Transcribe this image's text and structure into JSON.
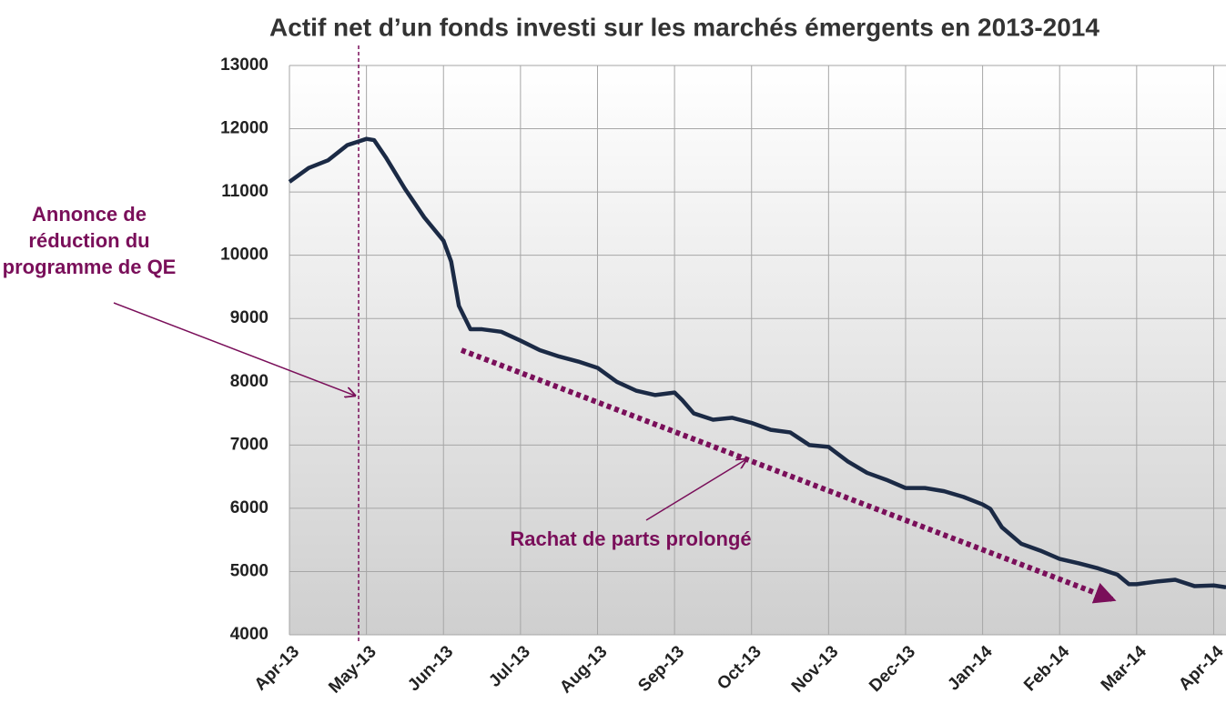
{
  "chart_data": {
    "type": "line",
    "title": "Actif net d’un fonds investi sur les marchés émergents en 2013-2014",
    "annotations": [
      {
        "text": [
          "Annonce de",
          "réduction du",
          "programme de QE"
        ]
      },
      {
        "text": "Rachat de parts prolongé"
      }
    ],
    "x": [
      0,
      0.25,
      0.5,
      0.75,
      0.9,
      1.0,
      1.1,
      1.25,
      1.5,
      1.75,
      2.0,
      2.1,
      2.2,
      2.35,
      2.5,
      2.75,
      3.0,
      3.25,
      3.5,
      3.75,
      4.0,
      4.25,
      4.5,
      4.75,
      5.0,
      5.1,
      5.25,
      5.5,
      5.75,
      6.0,
      6.25,
      6.5,
      6.75,
      7.0,
      7.25,
      7.5,
      7.75,
      8.0,
      8.25,
      8.5,
      8.75,
      9.0,
      9.1,
      9.25,
      9.5,
      9.75,
      10.0,
      10.25,
      10.5,
      10.75,
      10.9,
      11.0,
      11.25,
      11.5,
      11.75,
      12.0,
      12.16
    ],
    "series": [
      {
        "name": "Actif net",
        "color": "#1b2a45",
        "values": [
          11160,
          11380,
          11500,
          11740,
          11800,
          11840,
          11820,
          11550,
          11050,
          10600,
          10230,
          9900,
          9200,
          8830,
          8830,
          8790,
          8650,
          8500,
          8400,
          8320,
          8220,
          8000,
          7860,
          7790,
          7830,
          7710,
          7500,
          7400,
          7430,
          7350,
          7240,
          7200,
          7000,
          6970,
          6740,
          6560,
          6450,
          6320,
          6320,
          6270,
          6180,
          6060,
          5990,
          5700,
          5440,
          5330,
          5200,
          5130,
          5050,
          4950,
          4800,
          4800,
          4840,
          4870,
          4770,
          4780,
          4750
        ]
      }
    ],
    "xlim": [
      0,
      12.16
    ],
    "xticks": [
      {
        "value": 0,
        "label": "Apr-13"
      },
      {
        "value": 1,
        "label": "May-13"
      },
      {
        "value": 2,
        "label": "Jun-13"
      },
      {
        "value": 3,
        "label": "Jul-13"
      },
      {
        "value": 4,
        "label": "Aug-13"
      },
      {
        "value": 5,
        "label": "Sep-13"
      },
      {
        "value": 6,
        "label": "Oct-13"
      },
      {
        "value": 7,
        "label": "Nov-13"
      },
      {
        "value": 8,
        "label": "Dec-13"
      },
      {
        "value": 9,
        "label": "Jan-14"
      },
      {
        "value": 10,
        "label": "Feb-14"
      },
      {
        "value": 11,
        "label": "Mar-14"
      },
      {
        "value": 12,
        "label": "Apr-14"
      }
    ],
    "ylim": [
      4000,
      13000
    ],
    "yticks": [
      4000,
      5000,
      6000,
      7000,
      8000,
      9000,
      10000,
      11000,
      12000,
      13000
    ],
    "grid": true
  }
}
